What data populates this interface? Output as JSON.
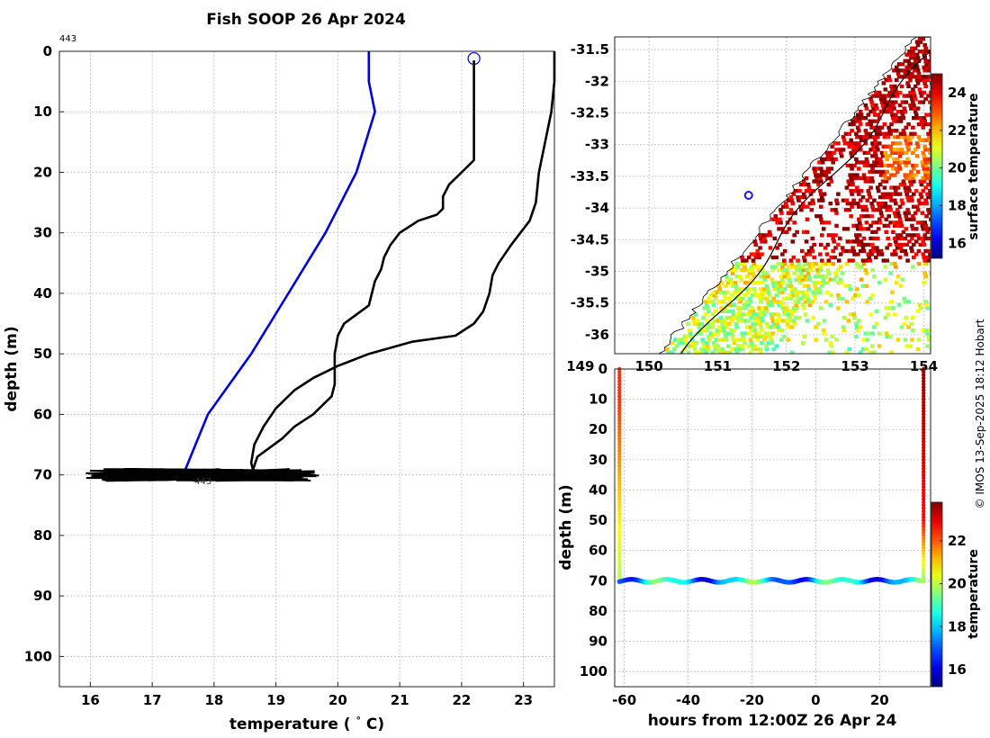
{
  "title": "Fish SOOP 26 Apr 2024",
  "watermark": "© IMOS 13-Sep-2025 18:12 Hobart",
  "profile_label_top": "443",
  "profile_label_bottom": "443",
  "chart_data": [
    {
      "type": "line",
      "name": "temperature-depth-profile",
      "xlabel": "temperature (° C)",
      "ylabel": "depth (m)",
      "xlim": [
        15.5,
        23.5
      ],
      "ylim": [
        105,
        0
      ],
      "xticks": [
        16,
        17,
        18,
        19,
        20,
        21,
        22,
        23
      ],
      "yticks": [
        0,
        10,
        20,
        30,
        40,
        50,
        60,
        70,
        80,
        90,
        100
      ],
      "series": [
        {
          "name": "reference-warm",
          "color": "#000000",
          "points": [
            [
              23.5,
              0
            ],
            [
              23.5,
              5
            ],
            [
              23.45,
              10
            ],
            [
              23.35,
              15
            ],
            [
              23.25,
              20
            ],
            [
              23.2,
              25
            ],
            [
              23.1,
              28
            ],
            [
              22.95,
              30
            ],
            [
              22.8,
              32
            ],
            [
              22.6,
              35
            ],
            [
              22.5,
              37
            ],
            [
              22.45,
              40
            ],
            [
              22.35,
              43
            ],
            [
              22.2,
              45
            ],
            [
              21.9,
              47
            ],
            [
              21.2,
              48
            ],
            [
              20.5,
              50
            ],
            [
              20.0,
              52
            ],
            [
              19.6,
              54
            ],
            [
              19.3,
              56
            ],
            [
              19.0,
              59
            ],
            [
              18.8,
              62
            ],
            [
              18.65,
              65
            ],
            [
              18.6,
              68
            ],
            [
              18.65,
              70
            ]
          ]
        },
        {
          "name": "reference-cool",
          "color": "#000000",
          "points": [
            [
              22.2,
              1.5
            ],
            [
              22.2,
              5
            ],
            [
              22.2,
              10
            ],
            [
              22.2,
              15
            ],
            [
              22.2,
              18
            ],
            [
              22.0,
              20
            ],
            [
              21.8,
              22
            ],
            [
              21.7,
              24
            ],
            [
              21.7,
              26
            ],
            [
              21.6,
              27
            ],
            [
              21.3,
              28
            ],
            [
              21.0,
              30
            ],
            [
              20.85,
              32
            ],
            [
              20.75,
              34
            ],
            [
              20.7,
              36
            ],
            [
              20.6,
              38
            ],
            [
              20.5,
              42
            ],
            [
              20.1,
              45
            ],
            [
              20.0,
              47
            ],
            [
              19.95,
              50
            ],
            [
              19.95,
              55
            ],
            [
              19.9,
              57
            ],
            [
              19.6,
              60
            ],
            [
              19.3,
              62
            ],
            [
              19.1,
              64
            ],
            [
              18.9,
              65.5
            ],
            [
              18.7,
              67
            ],
            [
              18.6,
              70
            ]
          ]
        },
        {
          "name": "vessel-profile",
          "color": "#0000dd",
          "points": [
            [
              20.5,
              0
            ],
            [
              20.5,
              5
            ],
            [
              20.6,
              10
            ],
            [
              20.3,
              20
            ],
            [
              19.8,
              30
            ],
            [
              19.2,
              40
            ],
            [
              18.6,
              50
            ],
            [
              17.9,
              60
            ],
            [
              17.5,
              70
            ]
          ]
        }
      ],
      "bottom_trace": {
        "depth_range": [
          69,
          71
        ],
        "temp_range": [
          15.9,
          19.8
        ]
      },
      "markers": [
        {
          "name": "surface-start-marker",
          "temperature": 22.2,
          "depth": 1.2
        }
      ]
    },
    {
      "type": "heatmap",
      "name": "sea-surface-temperature-map",
      "xlim": [
        149.5,
        154.1
      ],
      "ylim": [
        -36.3,
        -31.3
      ],
      "xticks": [
        149,
        150,
        151,
        152,
        153,
        154
      ],
      "yticks": [
        -31.5,
        -32,
        -32.5,
        -33,
        -33.5,
        -34,
        -34.5,
        -35,
        -35.5,
        -36
      ],
      "ytick_labels": [
        "-31.5",
        "-32",
        "-32.5",
        "-33",
        "-33.5",
        "-34",
        "-34.5",
        "-35",
        "-35.5",
        "-36"
      ],
      "colorbar": {
        "label": "surface temperature",
        "ticks": [
          16,
          18,
          20,
          22,
          24
        ],
        "range": [
          15.2,
          25
        ]
      },
      "vessel_position": {
        "lon": 151.45,
        "lat": -33.8
      }
    },
    {
      "type": "scatter",
      "name": "depth-time-series",
      "xlabel": "hours from 12:00Z 26 Apr 24",
      "ylabel": "depth (m)",
      "xlim": [
        -63,
        36
      ],
      "ylim": [
        105,
        0
      ],
      "xticks": [
        -60,
        -40,
        -20,
        0,
        20
      ],
      "yticks": [
        0,
        10,
        20,
        30,
        40,
        50,
        60,
        70,
        80,
        90,
        100
      ],
      "colorbar": {
        "label": "temperature",
        "ticks": [
          16,
          18,
          20,
          22
        ],
        "range": [
          15.2,
          23.8
        ]
      },
      "descent": {
        "hours": -61.5,
        "depth_range": [
          0,
          70
        ]
      },
      "ascent": {
        "hours": 33.8,
        "depth_range": [
          0,
          70
        ]
      },
      "bottom_depth": 70,
      "bottom_oscillation": {
        "amplitude_m": 0.5,
        "period_h": 11
      }
    }
  ]
}
